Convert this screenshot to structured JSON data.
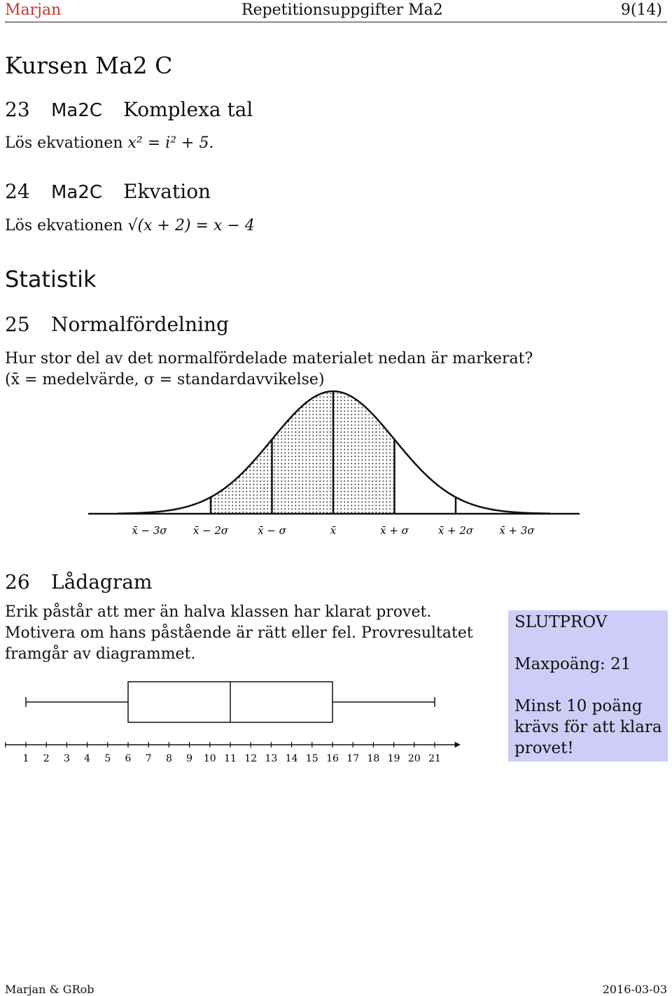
{
  "header": {
    "author": "Marjan",
    "title": "Repetitionsuppgifter Ma2",
    "page": "9(14)"
  },
  "section_course": "Kursen Ma2 C",
  "tasks": {
    "t23": {
      "num": "23",
      "code": "Ma2C",
      "title": "Komplexa tal",
      "text_prefix": "Lös ekvationen",
      "equation": "x² = i² + 5."
    },
    "t24": {
      "num": "24",
      "code": "Ma2C",
      "title": "Ekvation",
      "text_prefix": "Lös ekvationen",
      "equation": "√(x + 2) = x − 4"
    },
    "t25": {
      "num": "25",
      "title": "Normalfördelning",
      "question": "Hur stor del av det normalfördelade materialet nedan är markerat?",
      "note": "(x̄ = medelvärde, σ = standardavvikelse)"
    },
    "t26": {
      "num": "26",
      "title": "Lådagram",
      "line1": "Erik påstår att mer än halva klassen har klarat provet.",
      "line2": "Motivera om hans påstående är rätt eller fel. Provresultatet",
      "line3": "framgår av diagrammet."
    }
  },
  "section_stats": "Statistik",
  "normal_axis_labels": [
    "x̄ − 3σ",
    "x̄ − 2σ",
    "x̄ − σ",
    "x̄",
    "x̄ + σ",
    "x̄ + 2σ",
    "x̄ + 3σ"
  ],
  "normal_shaded_range_sd": [
    -2,
    1
  ],
  "boxplot": {
    "min": 1,
    "q1": 6,
    "median": 11,
    "q3": 16,
    "max": 21,
    "axis_ticks": [
      "1",
      "2",
      "3",
      "4",
      "5",
      "6",
      "7",
      "8",
      "9",
      "10",
      "11",
      "12",
      "13",
      "14",
      "15",
      "16",
      "17",
      "18",
      "19",
      "20",
      "21"
    ]
  },
  "info_box": {
    "title": "SLUTPROV",
    "maxpoints": "Maxpoäng: 21",
    "line1": "Minst 10 poäng",
    "line2": "krävs för att klara",
    "line3": "provet!",
    "background": "#cdcdf7"
  },
  "footer": {
    "left": "Marjan & GRob",
    "right": "2016-03-03"
  }
}
